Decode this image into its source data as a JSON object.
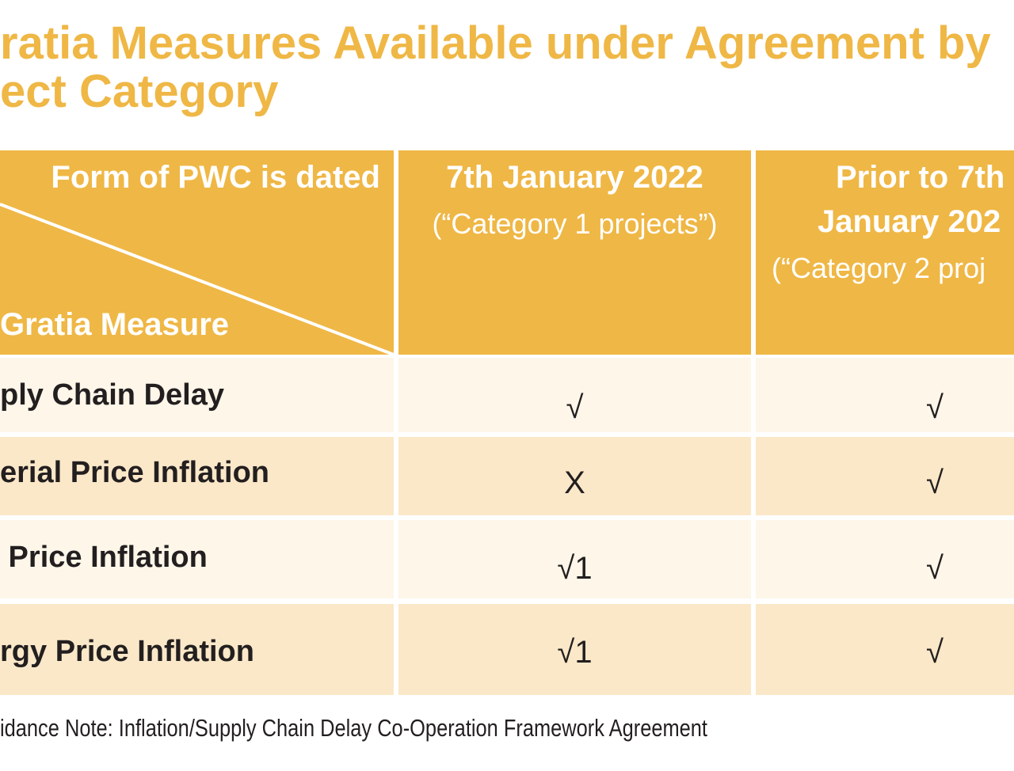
{
  "title": {
    "line1": "ratia Measures Available under Agreement by",
    "line2": "ect Category"
  },
  "table": {
    "header": {
      "corner_top": "Form of PWC is dated",
      "corner_bottom": "Gratia Measure",
      "col1": {
        "title": "7th January 2022",
        "subtitle": "(“Category 1 projects”)"
      },
      "col2": {
        "title1": "Prior to 7th",
        "title2": "January 202",
        "subtitle": "(“Category 2 proj"
      }
    },
    "rows": [
      [
        "ply Chain Delay",
        "√",
        "√"
      ],
      [
        "erial Price Inflation",
        "X",
        "√"
      ],
      [
        " Price Inflation",
        "√1",
        "√"
      ],
      [
        "rgy Price Inflation",
        "√1",
        "√"
      ]
    ]
  },
  "footer": "idance Note: Inflation/Supply Chain Delay Co-Operation Framework Agreement"
}
